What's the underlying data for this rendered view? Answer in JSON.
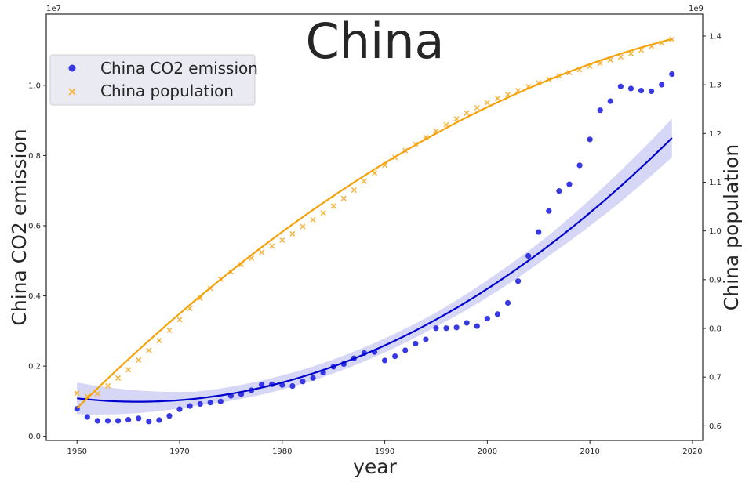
{
  "chart_data": {
    "type": "scatter",
    "title": "China",
    "xlabel": "year",
    "ylabel_left": "China  CO2 emission",
    "ylabel_right": "China  population",
    "xlim": [
      1957,
      2021
    ],
    "ylim_left": [
      -0.012,
      1.203
    ],
    "ylim_right": [
      0.57,
      1.445
    ],
    "left_offset_label": "1e7",
    "right_offset_label": "1e9",
    "x_ticks": [
      1960,
      1970,
      1980,
      1990,
      2000,
      2010,
      2020
    ],
    "y_left_ticks": [
      0.0,
      0.2,
      0.4,
      0.6,
      0.8,
      1.0
    ],
    "y_left_tick_labels": [
      "0.0",
      "0.2",
      "0.4",
      "0.6",
      "0.8",
      "1.0"
    ],
    "y_right_ticks": [
      0.6,
      0.7,
      0.8,
      0.9,
      1.0,
      1.1,
      1.2,
      1.3,
      1.4
    ],
    "y_right_tick_labels": [
      "0.6",
      "0.7",
      "0.8",
      "0.9",
      "1.0",
      "1.1",
      "1.2",
      "1.3",
      "1.4"
    ],
    "legend_placement": "upper-left",
    "grid": false,
    "series": [
      {
        "name": "China  CO2 emission",
        "marker": "circle",
        "axis": "left",
        "color": "#2323e0",
        "fit_color": "#0000cd",
        "band_color": "#c8c8f4",
        "x": [
          1960,
          1961,
          1962,
          1963,
          1964,
          1965,
          1966,
          1967,
          1968,
          1969,
          1970,
          1971,
          1972,
          1973,
          1974,
          1975,
          1976,
          1977,
          1978,
          1979,
          1980,
          1981,
          1982,
          1983,
          1984,
          1985,
          1986,
          1987,
          1988,
          1989,
          1990,
          1991,
          1992,
          1993,
          1994,
          1995,
          1996,
          1997,
          1998,
          1999,
          2000,
          2001,
          2002,
          2003,
          2004,
          2005,
          2006,
          2007,
          2008,
          2009,
          2010,
          2011,
          2012,
          2013,
          2014,
          2015,
          2016,
          2017,
          2018
        ],
        "y": [
          0.078,
          0.055,
          0.044,
          0.044,
          0.044,
          0.047,
          0.051,
          0.042,
          0.046,
          0.058,
          0.077,
          0.086,
          0.092,
          0.096,
          0.099,
          0.115,
          0.12,
          0.131,
          0.147,
          0.148,
          0.146,
          0.143,
          0.156,
          0.166,
          0.181,
          0.198,
          0.206,
          0.222,
          0.237,
          0.24,
          0.216,
          0.228,
          0.245,
          0.264,
          0.276,
          0.308,
          0.308,
          0.31,
          0.323,
          0.314,
          0.335,
          0.348,
          0.38,
          0.442,
          0.514,
          0.582,
          0.642,
          0.699,
          0.718,
          0.772,
          0.846,
          0.929,
          0.955,
          0.997,
          0.991,
          0.985,
          0.983,
          1.002,
          1.032
        ],
        "fit": {
          "x0": 1960,
          "x1": 2018,
          "y0": 0.108,
          "a": -0.00329,
          "b": 0.0002773
        },
        "band_halfwidth": [
          0.045,
          0.02,
          0.02,
          0.02,
          0.03,
          0.055
        ]
      },
      {
        "name": "China  population",
        "marker": "x",
        "axis": "right",
        "color": "#f4b33c",
        "fit_color": "#f5a20a",
        "x": [
          1960,
          1961,
          1962,
          1963,
          1964,
          1965,
          1966,
          1967,
          1968,
          1969,
          1970,
          1971,
          1972,
          1973,
          1974,
          1975,
          1976,
          1977,
          1978,
          1979,
          1980,
          1981,
          1982,
          1983,
          1984,
          1985,
          1986,
          1987,
          1988,
          1989,
          1990,
          1991,
          1992,
          1993,
          1994,
          1995,
          1996,
          1997,
          1998,
          1999,
          2000,
          2001,
          2002,
          2003,
          2004,
          2005,
          2006,
          2007,
          2008,
          2009,
          2010,
          2011,
          2012,
          2013,
          2014,
          2015,
          2016,
          2017,
          2018
        ],
        "y": [
          0.667,
          0.66,
          0.666,
          0.682,
          0.698,
          0.715,
          0.735,
          0.755,
          0.775,
          0.796,
          0.818,
          0.841,
          0.862,
          0.882,
          0.901,
          0.916,
          0.931,
          0.944,
          0.956,
          0.969,
          0.981,
          0.994,
          1.009,
          1.023,
          1.037,
          1.051,
          1.067,
          1.084,
          1.102,
          1.119,
          1.135,
          1.151,
          1.165,
          1.178,
          1.192,
          1.205,
          1.218,
          1.23,
          1.242,
          1.253,
          1.263,
          1.272,
          1.28,
          1.288,
          1.296,
          1.304,
          1.311,
          1.318,
          1.325,
          1.331,
          1.338,
          1.344,
          1.351,
          1.357,
          1.364,
          1.371,
          1.379,
          1.386,
          1.393
        ],
        "fit": {
          "x0": 1960,
          "x1": 2018,
          "y0": 0.636,
          "a": 0.02075,
          "b": -0.0001325
        }
      }
    ]
  }
}
